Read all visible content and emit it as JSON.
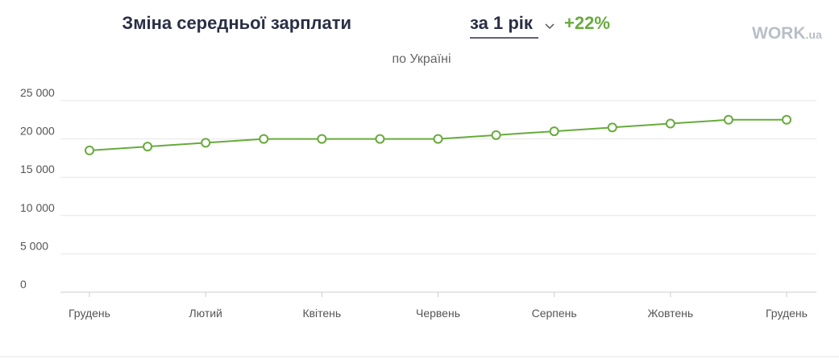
{
  "logo": {
    "main": "WORK",
    "suffix": ".ua"
  },
  "chart_data": {
    "type": "line",
    "title": "Зміна середньої зарплати",
    "period": "за 1 рік",
    "change": "+22%",
    "subtitle": "по Україні",
    "categories": [
      "Грудень",
      null,
      "Лютий",
      null,
      "Квітень",
      null,
      "Червень",
      null,
      "Серпень",
      null,
      "Жовтень",
      null,
      "Грудень"
    ],
    "series": [
      {
        "color": "#67ab3c",
        "values": [
          18500,
          19000,
          19500,
          20000,
          20000,
          20000,
          20000,
          20500,
          21000,
          21500,
          22000,
          22500,
          22500
        ]
      }
    ],
    "ylim": [
      0,
      25000
    ],
    "yticks": [
      0,
      {
        "value": 5000,
        "label": "5 000"
      },
      {
        "value": 10000,
        "label": "10 000"
      },
      {
        "value": 15000,
        "label": "15 000"
      },
      {
        "value": 20000,
        "label": "20 000"
      },
      {
        "value": 25000,
        "label": "25 000"
      }
    ],
    "grid": true
  }
}
